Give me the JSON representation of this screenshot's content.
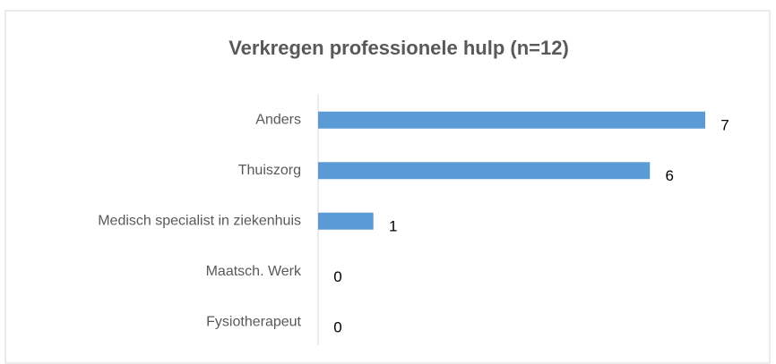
{
  "chart_data": {
    "type": "bar",
    "orientation": "horizontal",
    "title": "Verkregen professionele hulp (n=12)",
    "categories": [
      "Anders",
      "Thuiszorg",
      "Medisch specialist in ziekenhuis",
      "Maatsch. Werk",
      "Fysiotherapeut"
    ],
    "values": [
      7,
      6,
      1,
      0,
      0
    ],
    "color": "#5b9bd5",
    "grid": false
  }
}
